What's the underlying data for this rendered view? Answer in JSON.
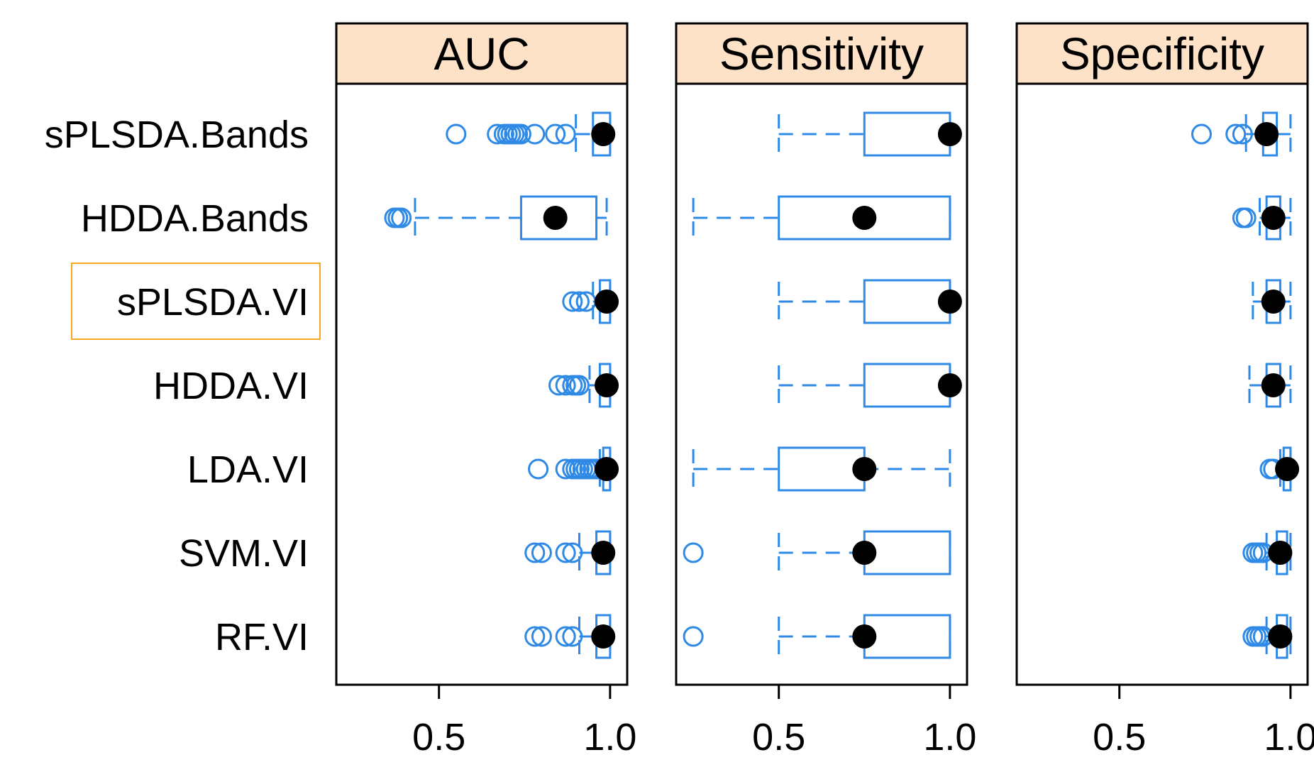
{
  "chart_data": {
    "type": "boxplot",
    "layout": "three horizontal box-plot panels sharing y categories",
    "categories": [
      "sPLSDA.Bands",
      "HDDA.Bands",
      "sPLSDA.VI",
      "HDDA.VI",
      "LDA.VI",
      "SVM.VI",
      "RF.VI"
    ],
    "highlighted_category": "sPLSDA.VI",
    "colors": {
      "box": "#2f8ae6",
      "median": "#000000",
      "strip": "#fde2c8",
      "highlight": "#f5a623"
    },
    "xlim": [
      0.2,
      1.05
    ],
    "xticks": [
      0.5,
      1.0
    ],
    "xtick_labels": [
      "0.5",
      "1.0"
    ],
    "panels": [
      {
        "title": "AUC",
        "boxes": [
          {
            "category": "sPLSDA.Bands",
            "wlo": 0.9,
            "q1": 0.95,
            "median": 0.98,
            "q3": 1.0,
            "whi": 1.0,
            "outliers": [
              0.55,
              0.67,
              0.69,
              0.7,
              0.71,
              0.72,
              0.73,
              0.74,
              0.78,
              0.84,
              0.87
            ]
          },
          {
            "category": "HDDA.Bands",
            "wlo": 0.43,
            "q1": 0.74,
            "median": 0.84,
            "q3": 0.96,
            "whi": 0.99,
            "outliers": [
              0.37,
              0.38,
              0.39
            ]
          },
          {
            "category": "sPLSDA.VI",
            "wlo": 0.95,
            "q1": 0.97,
            "median": 0.99,
            "q3": 1.0,
            "whi": 1.0,
            "outliers": [
              0.89,
              0.91,
              0.93
            ]
          },
          {
            "category": "HDDA.VI",
            "wlo": 0.94,
            "q1": 0.97,
            "median": 0.99,
            "q3": 1.0,
            "whi": 1.0,
            "outliers": [
              0.85,
              0.87,
              0.89,
              0.9,
              0.91
            ]
          },
          {
            "category": "LDA.VI",
            "wlo": 0.97,
            "q1": 0.98,
            "median": 0.99,
            "q3": 1.0,
            "whi": 1.0,
            "outliers": [
              0.79,
              0.87,
              0.89,
              0.9,
              0.91,
              0.92,
              0.93,
              0.94,
              0.95,
              0.96
            ]
          },
          {
            "category": "SVM.VI",
            "wlo": 0.91,
            "q1": 0.96,
            "median": 0.98,
            "q3": 1.0,
            "whi": 1.0,
            "outliers": [
              0.78,
              0.8,
              0.87,
              0.89
            ]
          },
          {
            "category": "RF.VI",
            "wlo": 0.91,
            "q1": 0.96,
            "median": 0.98,
            "q3": 1.0,
            "whi": 1.0,
            "outliers": [
              0.78,
              0.8,
              0.87,
              0.89
            ]
          }
        ]
      },
      {
        "title": "Sensitivity",
        "boxes": [
          {
            "category": "sPLSDA.Bands",
            "wlo": 0.5,
            "q1": 0.75,
            "median": 1.0,
            "q3": 1.0,
            "whi": 1.0,
            "outliers": []
          },
          {
            "category": "HDDA.Bands",
            "wlo": 0.25,
            "q1": 0.5,
            "median": 0.75,
            "q3": 1.0,
            "whi": 1.0,
            "outliers": []
          },
          {
            "category": "sPLSDA.VI",
            "wlo": 0.5,
            "q1": 0.75,
            "median": 1.0,
            "q3": 1.0,
            "whi": 1.0,
            "outliers": []
          },
          {
            "category": "HDDA.VI",
            "wlo": 0.5,
            "q1": 0.75,
            "median": 1.0,
            "q3": 1.0,
            "whi": 1.0,
            "outliers": []
          },
          {
            "category": "LDA.VI",
            "wlo": 0.25,
            "q1": 0.5,
            "median": 0.75,
            "q3": 0.75,
            "whi": 1.0,
            "outliers": []
          },
          {
            "category": "SVM.VI",
            "wlo": 0.5,
            "q1": 0.75,
            "median": 0.75,
            "q3": 1.0,
            "whi": 1.0,
            "outliers": [
              0.25
            ]
          },
          {
            "category": "RF.VI",
            "wlo": 0.5,
            "q1": 0.75,
            "median": 0.75,
            "q3": 1.0,
            "whi": 1.0,
            "outliers": [
              0.25
            ]
          }
        ]
      },
      {
        "title": "Specificity",
        "boxes": [
          {
            "category": "sPLSDA.Bands",
            "wlo": 0.87,
            "q1": 0.92,
            "median": 0.93,
            "q3": 0.96,
            "whi": 1.0,
            "outliers": [
              0.74,
              0.84,
              0.86
            ]
          },
          {
            "category": "HDDA.Bands",
            "wlo": 0.91,
            "q1": 0.93,
            "median": 0.95,
            "q3": 0.97,
            "whi": 1.0,
            "outliers": [
              0.86,
              0.87
            ]
          },
          {
            "category": "sPLSDA.VI",
            "wlo": 0.89,
            "q1": 0.93,
            "median": 0.95,
            "q3": 0.97,
            "whi": 1.0,
            "outliers": []
          },
          {
            "category": "HDDA.VI",
            "wlo": 0.88,
            "q1": 0.93,
            "median": 0.95,
            "q3": 0.97,
            "whi": 1.0,
            "outliers": []
          },
          {
            "category": "LDA.VI",
            "wlo": 0.97,
            "q1": 0.98,
            "median": 0.99,
            "q3": 1.0,
            "whi": 1.0,
            "outliers": [
              0.94,
              0.95
            ]
          },
          {
            "category": "SVM.VI",
            "wlo": 0.93,
            "q1": 0.96,
            "median": 0.97,
            "q3": 0.99,
            "whi": 1.0,
            "outliers": [
              0.89,
              0.9,
              0.91,
              0.92
            ]
          },
          {
            "category": "RF.VI",
            "wlo": 0.93,
            "q1": 0.96,
            "median": 0.97,
            "q3": 0.99,
            "whi": 1.0,
            "outliers": [
              0.89,
              0.9,
              0.91,
              0.92
            ]
          }
        ]
      }
    ]
  }
}
